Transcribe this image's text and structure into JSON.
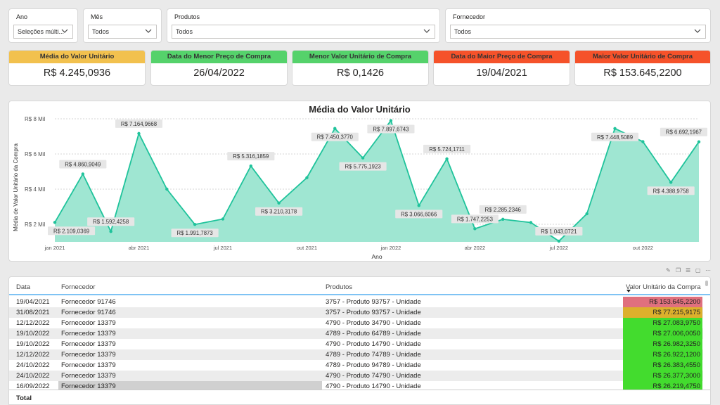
{
  "filters": [
    {
      "title": "Ano",
      "value": "Seleções múlti..."
    },
    {
      "title": "Mês",
      "value": "Todos"
    },
    {
      "title": "Produtos",
      "value": "Todos"
    },
    {
      "title": "Fornecedor",
      "value": "Todos"
    }
  ],
  "cards": [
    {
      "title": "Média do Valor Unitário",
      "value": "R$ 4.245,0936",
      "color": "#f2c14e"
    },
    {
      "title": "Data do Menor Preço de Compra",
      "value": "26/04/2022",
      "color": "#55d26b"
    },
    {
      "title": "Menor Valor Unitário de Compra",
      "value": "R$ 0,1426",
      "color": "#55d26b"
    },
    {
      "title": "Data do Maior Preço de Compra",
      "value": "19/04/2021",
      "color": "#f5522a"
    },
    {
      "title": "Maior Valor Unitário de Compra",
      "value": "R$ 153.645,2200",
      "color": "#f5522a"
    }
  ],
  "chart": {
    "title": "Média do Valor Unitário",
    "xlabel": "Ano",
    "ylabel": "Média de Valor Unitário da Compra"
  },
  "chart_data": {
    "type": "area",
    "title": "Média do Valor Unitário",
    "xlabel": "Ano",
    "ylabel": "Média de Valor Unitário da Compra",
    "ylim": [
      1000,
      8000
    ],
    "y_ticks": [
      {
        "value": 2000,
        "label": "R$ 2 Mil"
      },
      {
        "value": 4000,
        "label": "R$ 4 Mil"
      },
      {
        "value": 6000,
        "label": "R$ 6 Mil"
      },
      {
        "value": 8000,
        "label": "R$ 8 Mil"
      }
    ],
    "x_ticks": [
      {
        "index": 0,
        "label": "jan 2021"
      },
      {
        "index": 3,
        "label": "abr 2021"
      },
      {
        "index": 6,
        "label": "jul 2021"
      },
      {
        "index": 9,
        "label": "out 2021"
      },
      {
        "index": 12,
        "label": "jan 2022"
      },
      {
        "index": 15,
        "label": "abr 2022"
      },
      {
        "index": 18,
        "label": "jul 2022"
      },
      {
        "index": 21,
        "label": "out 2022"
      }
    ],
    "color": "#1fc39b",
    "fill": "#9fe6d2",
    "grid": true,
    "x": [
      "2021-01",
      "2021-02",
      "2021-03",
      "2021-04",
      "2021-05",
      "2021-06",
      "2021-07",
      "2021-08",
      "2021-09",
      "2021-10",
      "2021-11",
      "2021-12",
      "2022-01",
      "2022-02",
      "2022-03",
      "2022-04",
      "2022-05",
      "2022-06",
      "2022-07",
      "2022-08",
      "2022-09",
      "2022-10",
      "2022-11",
      "2022-12"
    ],
    "values": [
      2109.0369,
      4860.9049,
      1592.4258,
      7164.9668,
      4000,
      1991.7873,
      2300,
      5316.1859,
      3210.3178,
      4650,
      7450.377,
      5775.1923,
      7897.6743,
      3066.6066,
      5724.1711,
      1747.2253,
      2285.2346,
      2100,
      1043.0721,
      2600,
      7448.5089,
      6700,
      4388.9758,
      6692.1967
    ],
    "labels": [
      {
        "index": 0,
        "text": "R$ 2.109,0369",
        "pos": "below"
      },
      {
        "index": 1,
        "text": "R$ 4.860,9049",
        "pos": "above"
      },
      {
        "index": 2,
        "text": "R$ 1.592,4258",
        "pos": "above"
      },
      {
        "index": 3,
        "text": "R$ 7.164,9668",
        "pos": "above"
      },
      {
        "index": 5,
        "text": "R$ 1.991,7873",
        "pos": "below"
      },
      {
        "index": 7,
        "text": "R$ 5.316,1859",
        "pos": "above"
      },
      {
        "index": 8,
        "text": "R$ 3.210,3178",
        "pos": "below"
      },
      {
        "index": 10,
        "text": "R$ 7.450,3770",
        "pos": "below"
      },
      {
        "index": 11,
        "text": "R$ 5.775,1923",
        "pos": "below"
      },
      {
        "index": 12,
        "text": "R$ 7.897,6743",
        "pos": "below"
      },
      {
        "index": 13,
        "text": "R$ 3.066,6066",
        "pos": "below"
      },
      {
        "index": 14,
        "text": "R$ 5.724,1711",
        "pos": "above"
      },
      {
        "index": 15,
        "text": "R$ 1.747,2253",
        "pos": "above"
      },
      {
        "index": 16,
        "text": "R$ 2.285,2346",
        "pos": "above"
      },
      {
        "index": 18,
        "text": "R$ 1.043,0721",
        "pos": "above"
      },
      {
        "index": 20,
        "text": "R$ 7.448,5089",
        "pos": "below"
      },
      {
        "index": 22,
        "text": "R$ 4.388,9758",
        "pos": "below"
      },
      {
        "index": 23,
        "text": "R$ 6.692,1967",
        "pos": "above"
      }
    ]
  },
  "table": {
    "columns": [
      "Data",
      "Fornecedor",
      "Produtos",
      "Valor Unitário da Compra"
    ],
    "rows": [
      {
        "data": "19/04/2021",
        "fornecedor": "Fornecedor 91746",
        "produto": "3757 - Produto 93757 - Unidade",
        "valor": "R$ 153.645,2200",
        "color": "#e0707e"
      },
      {
        "data": "31/08/2021",
        "fornecedor": "Fornecedor 91746",
        "produto": "3757 - Produto 93757 - Unidade",
        "valor": "R$ 77.215,9175",
        "color": "#dcb02c"
      },
      {
        "data": "12/12/2022",
        "fornecedor": "Fornecedor 13379",
        "produto": "4790 - Produto 34790 - Unidade",
        "valor": "R$ 27.083,9750",
        "color": "#43dc2e"
      },
      {
        "data": "19/10/2022",
        "fornecedor": "Fornecedor 13379",
        "produto": "4789 - Produto 64789 - Unidade",
        "valor": "R$ 27.006,0050",
        "color": "#43dc2e"
      },
      {
        "data": "19/10/2022",
        "fornecedor": "Fornecedor 13379",
        "produto": "4790 - Produto 14790 - Unidade",
        "valor": "R$ 26.982,3250",
        "color": "#43dc2e"
      },
      {
        "data": "12/12/2022",
        "fornecedor": "Fornecedor 13379",
        "produto": "4789 - Produto 74789 - Unidade",
        "valor": "R$ 26.922,1200",
        "color": "#43dc2e"
      },
      {
        "data": "24/10/2022",
        "fornecedor": "Fornecedor 13379",
        "produto": "4789 - Produto 94789 - Unidade",
        "valor": "R$ 26.383,4550",
        "color": "#43dc2e"
      },
      {
        "data": "24/10/2022",
        "fornecedor": "Fornecedor 13379",
        "produto": "4790 - Produto 74790 - Unidade",
        "valor": "R$ 26.377,3000",
        "color": "#43dc2e"
      },
      {
        "data": "16/09/2022",
        "fornecedor": "Fornecedor 13379",
        "produto": "4790 - Produto 14790 - Unidade",
        "valor": "R$ 26.219,4750",
        "color": "#43dc2e"
      }
    ],
    "total_label": "Total"
  }
}
